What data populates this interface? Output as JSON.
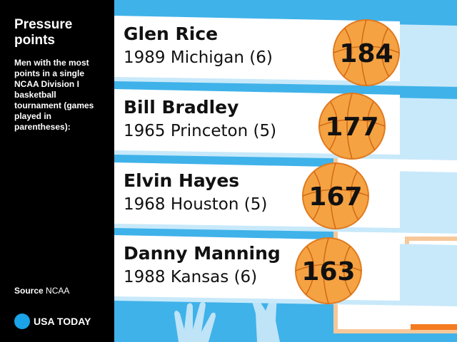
{
  "title": "Pressure points",
  "subtitle": "Men with the most points in a single NCAA Division I basketball tournament (games played in parentheses):",
  "source_label": "Source",
  "source": "NCAA",
  "logo": "USA TODAY",
  "entries": [
    {
      "name": "Glen Rice",
      "detail": "1989 Michigan (6)",
      "points": 184
    },
    {
      "name": "Bill Bradley",
      "detail": "1965 Princeton (5)",
      "points": 177
    },
    {
      "name": "Elvin Hayes",
      "detail": "1968 Houston (5)",
      "points": 167
    },
    {
      "name": "Danny Manning",
      "detail": "1988 Kansas (6)",
      "points": 163
    }
  ]
}
